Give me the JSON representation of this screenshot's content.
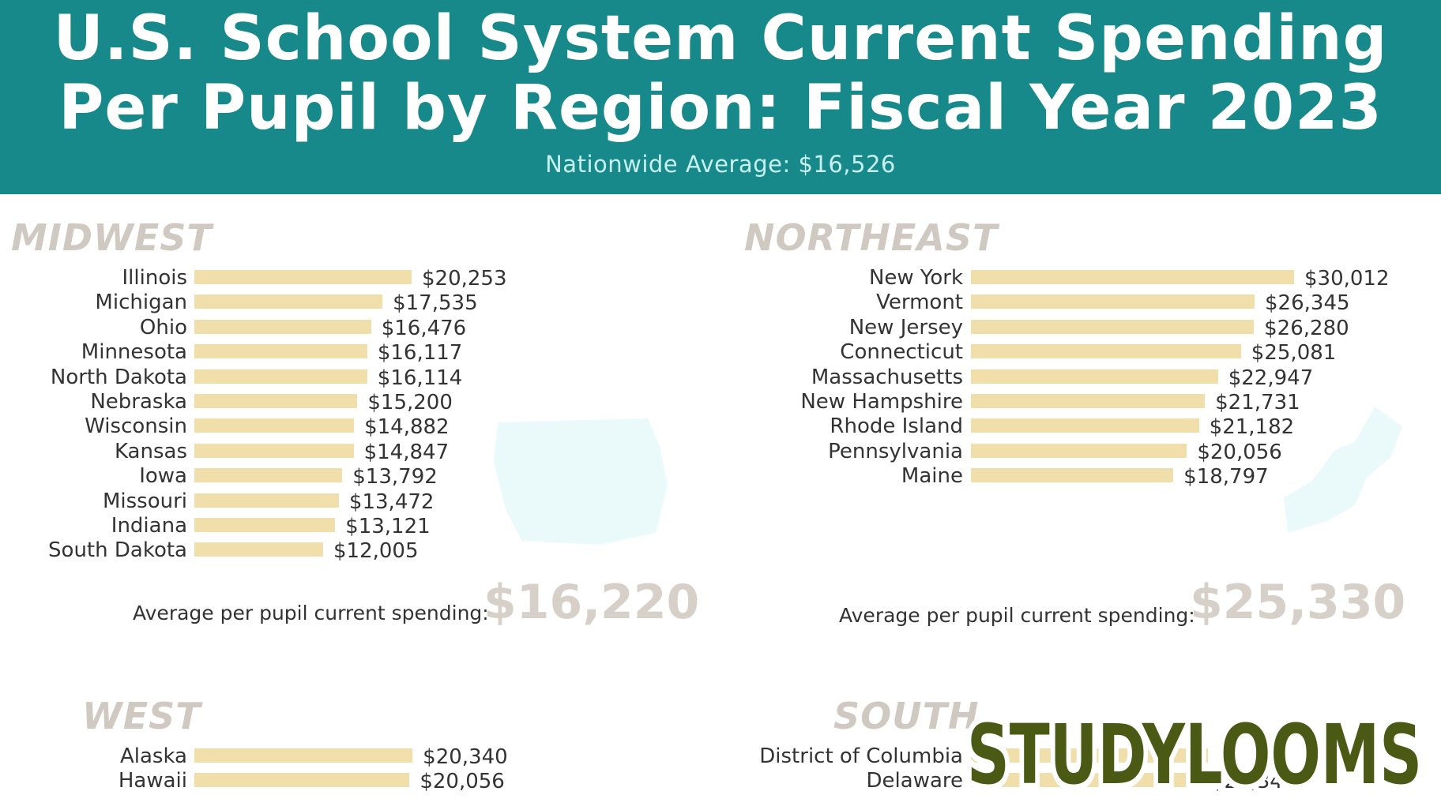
{
  "header": {
    "title_line1": "U.S. School System Current Spending",
    "title_line2": "Per Pupil by Region: Fiscal Year 2023",
    "subtitle": "Nationwide Average: $16,526"
  },
  "colors": {
    "header_bg": "#17898a",
    "bar": "#f0deab",
    "region_title": "#cfc9c2",
    "avg_value": "#d6d0c9",
    "logo": "#4a5a14"
  },
  "avg_label": "Average per pupil current spending:",
  "logo_text": "STUDYLOOMS",
  "chart_data": [
    {
      "type": "bar",
      "title": "MIDWEST",
      "orientation": "horizontal",
      "categories": [
        "Illinois",
        "Michigan",
        "Ohio",
        "Minnesota",
        "North Dakota",
        "Nebraska",
        "Wisconsin",
        "Kansas",
        "Iowa",
        "Missouri",
        "Indiana",
        "South Dakota"
      ],
      "values": [
        20253,
        17535,
        16476,
        16117,
        16114,
        15200,
        14882,
        14847,
        13792,
        13472,
        13121,
        12005
      ],
      "labels": [
        "$20,253",
        "$17,535",
        "$16,476",
        "$16,117",
        "$16,114",
        "$15,200",
        "$14,882",
        "$14,847",
        "$13,792",
        "$13,472",
        "$13,121",
        "$12,005"
      ],
      "average": "$16,220"
    },
    {
      "type": "bar",
      "title": "NORTHEAST",
      "orientation": "horizontal",
      "categories": [
        "New York",
        "Vermont",
        "New Jersey",
        "Connecticut",
        "Massachusetts",
        "New Hampshire",
        "Rhode Island",
        "Pennsylvania",
        "Maine"
      ],
      "values": [
        30012,
        26345,
        26280,
        25081,
        22947,
        21731,
        21182,
        20056,
        18797
      ],
      "labels": [
        "$30,012",
        "$26,345",
        "$26,280",
        "$25,081",
        "$22,947",
        "$21,731",
        "$21,182",
        "$20,056",
        "$18,797"
      ],
      "average": "$25,330"
    },
    {
      "type": "bar",
      "title": "WEST",
      "orientation": "horizontal",
      "categories": [
        "Alaska",
        "Hawaii"
      ],
      "values": [
        20340,
        20056
      ],
      "labels": [
        "$20,340",
        "$20,056"
      ]
    },
    {
      "type": "bar",
      "title": "SOUTH",
      "orientation": "horizontal",
      "categories": [
        "District of Columbia",
        "Delaware"
      ],
      "values": [
        null,
        21340
      ],
      "labels": [
        "",
        "$21,340"
      ]
    }
  ]
}
